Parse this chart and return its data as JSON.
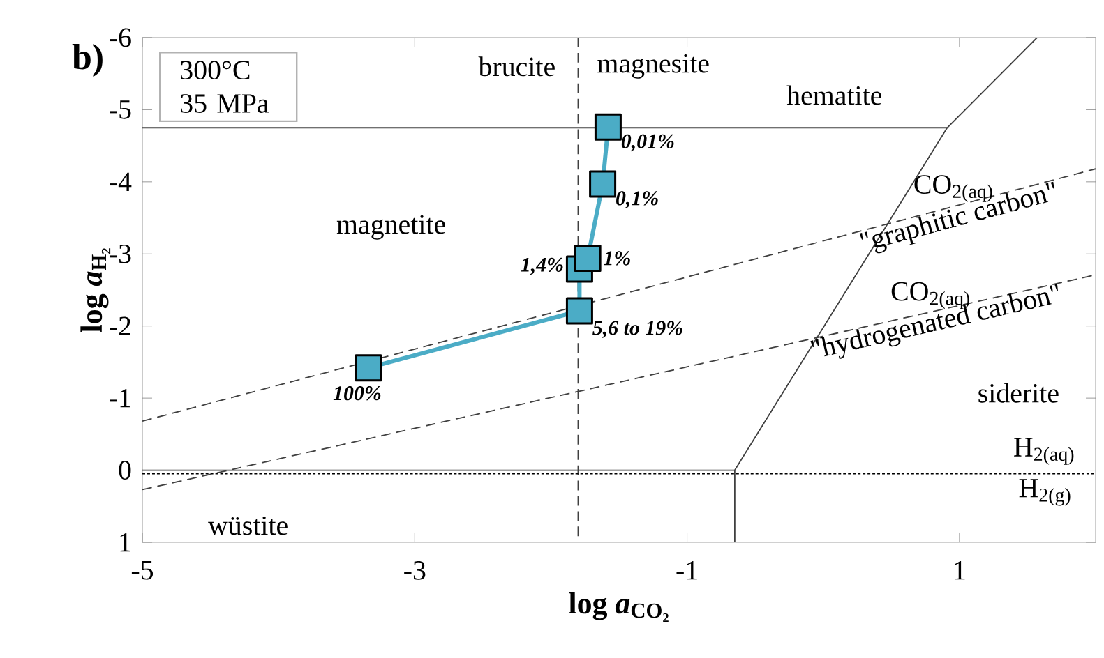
{
  "chart_data": {
    "type": "line",
    "title": "b)",
    "xlabel": "log *a*$_{CO₂}$",
    "ylabel": "log *a*$_{H₂}$",
    "xlim": [
      -5,
      2
    ],
    "ylim": [
      1,
      -6
    ],
    "xticks": [
      -5,
      -3,
      -1,
      1
    ],
    "yticks": [
      -6,
      -5,
      -4,
      -3,
      -2,
      -1,
      0,
      1
    ],
    "grid": false,
    "line_style": "solid",
    "series": [
      {
        "color": "#4bacc6",
        "marker": "square",
        "x": [
          -3.34,
          -1.79,
          -1.79,
          -1.73,
          -1.62,
          -1.58
        ],
        "values": [
          -1.42,
          -2.21,
          -2.79,
          -2.94,
          -3.97,
          -4.76
        ]
      },
      {
        "color": "#404040",
        "marker": "none",
        "x": [
          -5,
          -0.65,
          0.91,
          1.57
        ],
        "values": [
          0,
          0,
          -4.75,
          -6
        ]
      },
      {
        "color": "#404040",
        "marker": "none",
        "x": [
          -5,
          0.91
        ],
        "values": [
          -4.75,
          -4.75
        ]
      },
      {
        "color": "#404040",
        "marker": "none",
        "x": [
          -0.65,
          -0.65
        ],
        "values": [
          1,
          0
        ]
      },
      {
        "color": "#404040",
        "marker": "none",
        "line_style": "dashed",
        "x": [
          -5,
          2
        ],
        "values": [
          -0.68,
          -4.18
        ]
      },
      {
        "color": "#404040",
        "marker": "none",
        "line_style": "dashed",
        "x": [
          -5,
          2
        ],
        "values": [
          0.27,
          -2.71
        ]
      }
    ],
    "ref_lines": [
      {
        "axis": "x",
        "value": -1.8,
        "color": "#404040",
        "line_style": "dashed"
      },
      {
        "axis": "y",
        "value": 0.05,
        "color": "#000000",
        "line_style": "dotted"
      }
    ],
    "annotations": [
      "300°C",
      "35 MPa",
      {
        "text": "0,01%",
        "x": -1.58,
        "y": -4.76
      },
      {
        "text": "0,1%",
        "x": -1.62,
        "y": -3.97
      },
      {
        "text": "1%",
        "x": -1.73,
        "y": -2.94
      },
      {
        "text": "1,4%",
        "x": -1.79,
        "y": -2.79
      },
      {
        "text": "5,6 to 19%",
        "x": -1.79,
        "y": -2.21
      },
      {
        "text": "100%",
        "x": -3.34,
        "y": -1.42
      },
      "brucite",
      "magnesite",
      "hematite",
      "magnetite",
      "CO$_{2(aq)}$",
      "\"graphitic carbon\"",
      "CO$_{2(aq)}$",
      "\"hydrogenated carbon\"",
      "siderite",
      "H$_{2(aq)}$",
      "H$_{2(g)}$",
      "wüstite"
    ]
  }
}
